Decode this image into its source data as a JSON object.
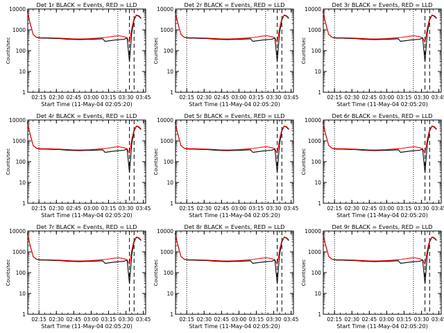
{
  "common": {
    "ylabel": "Counts/sec",
    "xlabel": "Start Time (11-May-04 02:05:20)",
    "yticks": [
      "1",
      "10",
      "100",
      "1000",
      "10000"
    ],
    "xticks": [
      "02:15",
      "02:30",
      "02:45",
      "03:00",
      "03:15",
      "03:30",
      "03:45"
    ]
  },
  "chart_data": [
    {
      "type": "line",
      "title": "Det 1r BLACK = Events, RED = LLD",
      "xlabel": "Start Time (11-May-04 02:05:20)",
      "ylabel": "Counts/sec",
      "y_scale": "log",
      "ylim": [
        1,
        10000
      ],
      "xlim": [
        "02:05:20",
        "03:47:00"
      ],
      "x": [
        "02:05",
        "02:07",
        "02:10",
        "02:13",
        "02:17",
        "02:22",
        "02:27",
        "02:33",
        "02:38",
        "02:44",
        "02:50",
        "02:55",
        "03:00",
        "03:05",
        "03:10",
        "03:12",
        "03:16",
        "03:20",
        "03:24",
        "03:28",
        "03:31",
        "03:33",
        "03:35",
        "03:37",
        "03:39",
        "03:41",
        "03:43"
      ],
      "series": [
        {
          "name": "Events",
          "color": "#000000",
          "values": [
            8000,
            2500,
            600,
            430,
            400,
            400,
            390,
            380,
            360,
            345,
            340,
            345,
            350,
            360,
            370,
            280,
            300,
            320,
            340,
            350,
            400,
            30,
            700,
            3000,
            5000,
            4500,
            3500
          ]
        },
        {
          "name": "LLD",
          "color": "#ff0000",
          "values": [
            7000,
            2400,
            600,
            440,
            420,
            420,
            410,
            400,
            385,
            370,
            365,
            370,
            380,
            400,
            420,
            430,
            460,
            500,
            520,
            470,
            420,
            250,
            1200,
            3500,
            5200,
            4800,
            3800
          ]
        }
      ],
      "vlines": {
        "dotted": [
          "02:15",
          "03:23"
        ],
        "dashed": [
          "03:33",
          "03:37"
        ]
      }
    },
    {
      "type": "line",
      "title": "Det 2r BLACK = Events, RED = LLD",
      "xlabel": "Start Time (11-May-04 02:05:20)",
      "ylabel": "Counts/sec",
      "y_scale": "log",
      "ylim": [
        1,
        10000
      ],
      "xlim": [
        "02:05:20",
        "03:47:00"
      ],
      "x": [
        "02:05",
        "02:07",
        "02:10",
        "02:13",
        "02:17",
        "02:22",
        "02:27",
        "02:33",
        "02:38",
        "02:44",
        "02:50",
        "02:55",
        "03:00",
        "03:05",
        "03:10",
        "03:12",
        "03:16",
        "03:20",
        "03:24",
        "03:28",
        "03:31",
        "03:33",
        "03:35",
        "03:37",
        "03:39",
        "03:41",
        "03:43"
      ],
      "series": [
        {
          "name": "Events",
          "color": "#000000",
          "values": [
            8000,
            2500,
            600,
            430,
            400,
            400,
            390,
            380,
            360,
            345,
            340,
            345,
            350,
            360,
            370,
            280,
            300,
            320,
            340,
            350,
            400,
            30,
            700,
            3000,
            5000,
            4500,
            3500
          ]
        },
        {
          "name": "LLD",
          "color": "#ff0000",
          "values": [
            7000,
            2400,
            600,
            440,
            420,
            420,
            410,
            400,
            385,
            370,
            365,
            370,
            380,
            400,
            420,
            430,
            460,
            500,
            520,
            470,
            420,
            250,
            1200,
            3500,
            5200,
            4800,
            3800
          ]
        }
      ],
      "vlines": {
        "dotted": [
          "02:15",
          "03:23"
        ],
        "dashed": [
          "03:33",
          "03:37"
        ]
      }
    },
    {
      "type": "line",
      "title": "Det 3r BLACK = Events, RED = LLD",
      "xlabel": "Start Time (11-May-04 02:05:20)",
      "ylabel": "Counts/sec",
      "y_scale": "log",
      "ylim": [
        1,
        10000
      ],
      "xlim": [
        "02:05:20",
        "03:47:00"
      ],
      "x": [
        "02:05",
        "02:07",
        "02:10",
        "02:13",
        "02:17",
        "02:22",
        "02:27",
        "02:33",
        "02:38",
        "02:44",
        "02:50",
        "02:55",
        "03:00",
        "03:05",
        "03:10",
        "03:12",
        "03:16",
        "03:20",
        "03:24",
        "03:28",
        "03:31",
        "03:33",
        "03:35",
        "03:37",
        "03:39",
        "03:41",
        "03:43"
      ],
      "series": [
        {
          "name": "Events",
          "color": "#000000",
          "values": [
            8000,
            2500,
            600,
            430,
            400,
            400,
            390,
            380,
            360,
            345,
            340,
            345,
            350,
            360,
            370,
            280,
            300,
            320,
            340,
            350,
            400,
            30,
            700,
            3000,
            5000,
            4500,
            3500
          ]
        },
        {
          "name": "LLD",
          "color": "#ff0000",
          "values": [
            7000,
            2400,
            600,
            440,
            420,
            420,
            410,
            400,
            385,
            370,
            365,
            370,
            380,
            400,
            420,
            430,
            460,
            500,
            520,
            470,
            420,
            250,
            1200,
            3500,
            5200,
            4800,
            3800
          ]
        }
      ],
      "vlines": {
        "dotted": [
          "02:15",
          "03:23"
        ],
        "dashed": [
          "03:33",
          "03:37"
        ]
      }
    },
    {
      "type": "line",
      "title": "Det 4r BLACK = Events, RED = LLD",
      "xlabel": "Start Time (11-May-04 02:05:20)",
      "ylabel": "Counts/sec",
      "y_scale": "log",
      "ylim": [
        1,
        10000
      ],
      "xlim": [
        "02:05:20",
        "03:47:00"
      ],
      "x": [
        "02:05",
        "02:07",
        "02:10",
        "02:13",
        "02:17",
        "02:22",
        "02:27",
        "02:33",
        "02:38",
        "02:44",
        "02:50",
        "02:55",
        "03:00",
        "03:05",
        "03:10",
        "03:12",
        "03:16",
        "03:20",
        "03:24",
        "03:28",
        "03:31",
        "03:33",
        "03:35",
        "03:37",
        "03:39",
        "03:41",
        "03:43"
      ],
      "series": [
        {
          "name": "Events",
          "color": "#000000",
          "values": [
            8000,
            2500,
            600,
            430,
            400,
            400,
            390,
            380,
            360,
            345,
            340,
            345,
            350,
            360,
            370,
            280,
            300,
            320,
            340,
            350,
            400,
            30,
            700,
            3000,
            5000,
            4500,
            3500
          ]
        },
        {
          "name": "LLD",
          "color": "#ff0000",
          "values": [
            7000,
            2400,
            600,
            440,
            420,
            420,
            410,
            400,
            385,
            370,
            365,
            370,
            380,
            400,
            420,
            430,
            460,
            500,
            520,
            470,
            420,
            250,
            1200,
            3500,
            5200,
            4800,
            3800
          ]
        }
      ],
      "vlines": {
        "dotted": [
          "02:15",
          "03:23"
        ],
        "dashed": [
          "03:33",
          "03:37"
        ]
      }
    },
    {
      "type": "line",
      "title": "Det 5r BLACK = Events, RED = LLD",
      "xlabel": "Start Time (11-May-04 02:05:20)",
      "ylabel": "Counts/sec",
      "y_scale": "log",
      "ylim": [
        1,
        10000
      ],
      "xlim": [
        "02:05:20",
        "03:47:00"
      ],
      "x": [
        "02:05",
        "02:07",
        "02:10",
        "02:13",
        "02:17",
        "02:22",
        "02:27",
        "02:33",
        "02:38",
        "02:44",
        "02:50",
        "02:55",
        "03:00",
        "03:05",
        "03:10",
        "03:12",
        "03:16",
        "03:20",
        "03:24",
        "03:28",
        "03:31",
        "03:33",
        "03:35",
        "03:37",
        "03:39",
        "03:41",
        "03:43"
      ],
      "series": [
        {
          "name": "Events",
          "color": "#000000",
          "values": [
            8000,
            2500,
            600,
            430,
            400,
            400,
            390,
            380,
            360,
            345,
            340,
            345,
            350,
            360,
            370,
            280,
            300,
            320,
            340,
            350,
            400,
            30,
            700,
            3000,
            5000,
            4500,
            3500
          ]
        },
        {
          "name": "LLD",
          "color": "#ff0000",
          "values": [
            7000,
            2400,
            600,
            440,
            420,
            420,
            410,
            400,
            385,
            370,
            365,
            370,
            380,
            400,
            420,
            430,
            460,
            500,
            520,
            470,
            420,
            250,
            1200,
            3500,
            5200,
            4800,
            3800
          ]
        }
      ],
      "vlines": {
        "dotted": [
          "02:15",
          "03:23"
        ],
        "dashed": [
          "03:33",
          "03:37"
        ]
      }
    },
    {
      "type": "line",
      "title": "Det 6r BLACK = Events, RED = LLD",
      "xlabel": "Start Time (11-May-04 02:05:20)",
      "ylabel": "Counts/sec",
      "y_scale": "log",
      "ylim": [
        1,
        10000
      ],
      "xlim": [
        "02:05:20",
        "03:47:00"
      ],
      "x": [
        "02:05",
        "02:07",
        "02:10",
        "02:13",
        "02:17",
        "02:22",
        "02:27",
        "02:33",
        "02:38",
        "02:44",
        "02:50",
        "02:55",
        "03:00",
        "03:05",
        "03:10",
        "03:12",
        "03:16",
        "03:20",
        "03:24",
        "03:28",
        "03:31",
        "03:33",
        "03:35",
        "03:37",
        "03:39",
        "03:41",
        "03:43"
      ],
      "series": [
        {
          "name": "Events",
          "color": "#000000",
          "values": [
            8000,
            2500,
            600,
            430,
            400,
            400,
            390,
            380,
            360,
            345,
            340,
            345,
            350,
            360,
            370,
            280,
            300,
            320,
            340,
            350,
            400,
            30,
            700,
            3000,
            5000,
            4500,
            3500
          ]
        },
        {
          "name": "LLD",
          "color": "#ff0000",
          "values": [
            7000,
            2400,
            600,
            440,
            420,
            420,
            410,
            400,
            385,
            370,
            365,
            370,
            380,
            400,
            420,
            430,
            460,
            500,
            520,
            470,
            420,
            250,
            1200,
            3500,
            5200,
            4800,
            3800
          ]
        }
      ],
      "vlines": {
        "dotted": [
          "02:15",
          "03:23"
        ],
        "dashed": [
          "03:33",
          "03:37"
        ]
      }
    },
    {
      "type": "line",
      "title": "Det 7r BLACK = Events, RED = LLD",
      "xlabel": "Start Time (11-May-04 02:05:20)",
      "ylabel": "Counts/sec",
      "y_scale": "log",
      "ylim": [
        1,
        10000
      ],
      "xlim": [
        "02:05:20",
        "03:47:00"
      ],
      "x": [
        "02:05",
        "02:07",
        "02:10",
        "02:13",
        "02:17",
        "02:22",
        "02:27",
        "02:33",
        "02:38",
        "02:44",
        "02:50",
        "02:55",
        "03:00",
        "03:05",
        "03:10",
        "03:12",
        "03:16",
        "03:20",
        "03:24",
        "03:28",
        "03:31",
        "03:33",
        "03:35",
        "03:37",
        "03:39",
        "03:41",
        "03:43"
      ],
      "series": [
        {
          "name": "Events",
          "color": "#000000",
          "values": [
            8000,
            2500,
            600,
            430,
            400,
            400,
            390,
            380,
            360,
            345,
            340,
            345,
            350,
            360,
            370,
            280,
            300,
            320,
            340,
            350,
            400,
            30,
            700,
            3000,
            5000,
            4500,
            3500
          ]
        },
        {
          "name": "LLD",
          "color": "#ff0000",
          "values": [
            7000,
            2400,
            600,
            440,
            420,
            420,
            410,
            400,
            385,
            370,
            365,
            370,
            380,
            400,
            420,
            430,
            460,
            500,
            520,
            470,
            420,
            250,
            1200,
            3500,
            5200,
            4800,
            3800
          ]
        }
      ],
      "vlines": {
        "dotted": [
          "02:15",
          "03:23"
        ],
        "dashed": [
          "03:33",
          "03:37"
        ]
      }
    },
    {
      "type": "line",
      "title": "Det 8r BLACK = Events, RED = LLD",
      "xlabel": "Start Time (11-May-04 02:05:20)",
      "ylabel": "Counts/sec",
      "y_scale": "log",
      "ylim": [
        1,
        10000
      ],
      "xlim": [
        "02:05:20",
        "03:47:00"
      ],
      "x": [
        "02:05",
        "02:07",
        "02:10",
        "02:13",
        "02:17",
        "02:22",
        "02:27",
        "02:33",
        "02:38",
        "02:44",
        "02:50",
        "02:55",
        "03:00",
        "03:05",
        "03:10",
        "03:12",
        "03:16",
        "03:20",
        "03:24",
        "03:28",
        "03:31",
        "03:33",
        "03:35",
        "03:37",
        "03:39",
        "03:41",
        "03:43"
      ],
      "series": [
        {
          "name": "Events",
          "color": "#000000",
          "values": [
            8000,
            2500,
            600,
            430,
            400,
            400,
            390,
            380,
            360,
            345,
            340,
            345,
            350,
            360,
            370,
            280,
            300,
            320,
            340,
            350,
            400,
            30,
            700,
            3000,
            5000,
            4500,
            3500
          ]
        },
        {
          "name": "LLD",
          "color": "#ff0000",
          "values": [
            7000,
            2400,
            600,
            440,
            420,
            420,
            410,
            400,
            385,
            370,
            365,
            370,
            380,
            400,
            420,
            430,
            460,
            500,
            520,
            470,
            420,
            250,
            1200,
            3500,
            5200,
            4800,
            3800
          ]
        }
      ],
      "vlines": {
        "dotted": [
          "02:15",
          "03:23"
        ],
        "dashed": [
          "03:33",
          "03:37"
        ]
      }
    },
    {
      "type": "line",
      "title": "Det 9r BLACK = Events, RED = LLD",
      "xlabel": "Start Time (11-May-04 02:05:20)",
      "ylabel": "Counts/sec",
      "y_scale": "log",
      "ylim": [
        1,
        10000
      ],
      "xlim": [
        "02:05:20",
        "03:47:00"
      ],
      "x": [
        "02:05",
        "02:07",
        "02:10",
        "02:13",
        "02:17",
        "02:22",
        "02:27",
        "02:33",
        "02:38",
        "02:44",
        "02:50",
        "02:55",
        "03:00",
        "03:05",
        "03:10",
        "03:12",
        "03:16",
        "03:20",
        "03:24",
        "03:28",
        "03:31",
        "03:33",
        "03:35",
        "03:37",
        "03:39",
        "03:41",
        "03:43"
      ],
      "series": [
        {
          "name": "Events",
          "color": "#000000",
          "values": [
            8000,
            2500,
            600,
            430,
            400,
            400,
            390,
            380,
            360,
            345,
            340,
            345,
            350,
            360,
            370,
            280,
            300,
            320,
            340,
            350,
            400,
            30,
            700,
            3000,
            5000,
            4500,
            3500
          ]
        },
        {
          "name": "LLD",
          "color": "#ff0000",
          "values": [
            7000,
            2400,
            600,
            440,
            420,
            420,
            410,
            400,
            385,
            370,
            365,
            370,
            380,
            400,
            420,
            430,
            460,
            500,
            520,
            470,
            420,
            250,
            1200,
            3500,
            5200,
            4800,
            3800
          ]
        }
      ],
      "vlines": {
        "dotted": [
          "02:15",
          "03:23"
        ],
        "dashed": [
          "03:33",
          "03:37"
        ]
      }
    }
  ]
}
